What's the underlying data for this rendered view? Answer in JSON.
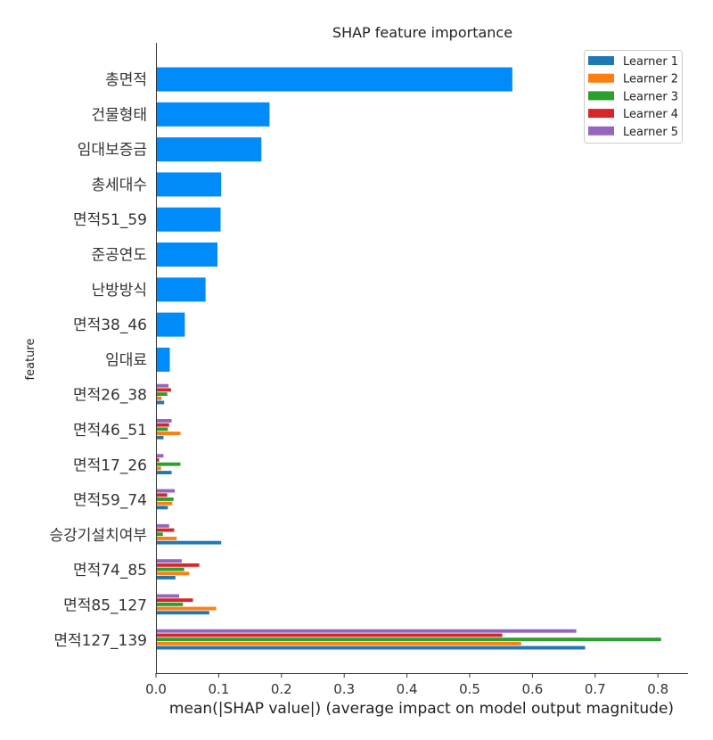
{
  "chart_data": {
    "type": "bar",
    "orientation": "horizontal",
    "title": "SHAP feature importance",
    "xlabel": "mean(|SHAP value|) (average impact on model output magnitude)",
    "ylabel": "feature",
    "xlim": [
      0,
      0.85
    ],
    "xticks": [
      "0.0",
      "0.1",
      "0.2",
      "0.3",
      "0.4",
      "0.5",
      "0.6",
      "0.7",
      "0.8"
    ],
    "legend_position": "top-right",
    "overall": {
      "color": "#008bfb",
      "categories": [
        "총면적",
        "건물형태",
        "임대보증금",
        "총세대수",
        "면적51_59",
        "준공연도",
        "난방방식",
        "면적38_46",
        "임대료"
      ],
      "values": [
        0.568,
        0.181,
        0.168,
        0.104,
        0.103,
        0.098,
        0.079,
        0.046,
        0.022
      ]
    },
    "grouped": {
      "categories": [
        "면적26_38",
        "면적46_51",
        "면적17_26",
        "면적59_74",
        "승강기설치여부",
        "면적74_85",
        "면적85_127",
        "면적127_139"
      ],
      "series": [
        {
          "name": "Learner 1",
          "color": "#1f77b4",
          "values": [
            0.013,
            0.012,
            0.025,
            0.019,
            0.104,
            0.031,
            0.085,
            0.684
          ]
        },
        {
          "name": "Learner 2",
          "color": "#ff7f0e",
          "values": [
            0.009,
            0.039,
            0.008,
            0.026,
            0.033,
            0.053,
            0.096,
            0.582
          ]
        },
        {
          "name": "Learner 3",
          "color": "#2ca02c",
          "values": [
            0.018,
            0.019,
            0.039,
            0.028,
            0.011,
            0.045,
            0.043,
            0.805
          ]
        },
        {
          "name": "Learner 4",
          "color": "#d62728",
          "values": [
            0.024,
            0.021,
            0.005,
            0.018,
            0.029,
            0.069,
            0.059,
            0.552
          ]
        },
        {
          "name": "Learner 5",
          "color": "#9467bd",
          "values": [
            0.02,
            0.025,
            0.012,
            0.03,
            0.021,
            0.041,
            0.037,
            0.67
          ]
        }
      ]
    }
  }
}
